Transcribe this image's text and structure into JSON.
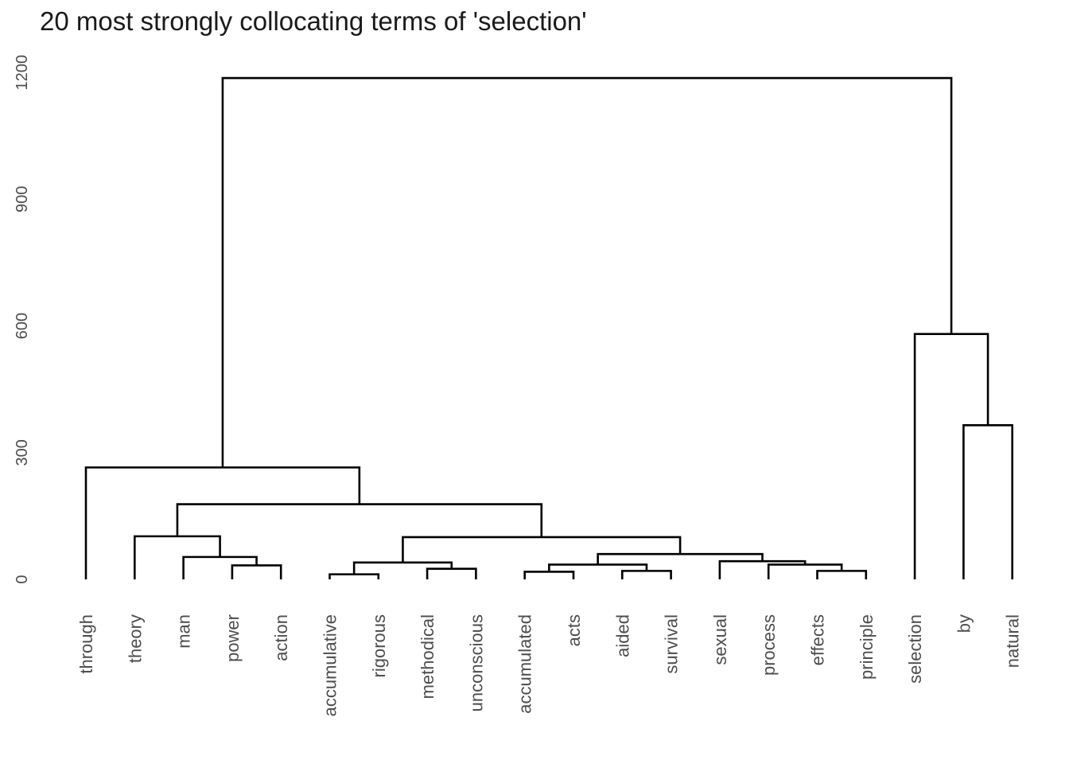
{
  "chart_data": {
    "type": "dendrogram",
    "title": "20 most strongly collocating terms of 'selection'",
    "ylim": [
      0,
      1230
    ],
    "y_ticks": [
      0,
      300,
      600,
      900,
      1200
    ],
    "grid": false,
    "leaves": [
      "through",
      "theory",
      "man",
      "power",
      "action",
      "accumulative",
      "rigorous",
      "methodical",
      "unconscious",
      "accumulated",
      "acts",
      "aided",
      "survival",
      "sexual",
      "process",
      "effects",
      "principle",
      "selection",
      "by",
      "natural"
    ],
    "merges": [
      {
        "a": "L:accumulative",
        "b": "L:rigorous",
        "height": 12
      },
      {
        "a": "L:aided",
        "b": "L:survival",
        "height": 20
      },
      {
        "a": "L:accumulated",
        "b": "L:acts",
        "height": 18
      },
      {
        "a": "L:effects",
        "b": "L:principle",
        "height": 20
      },
      {
        "a": "L:methodical",
        "b": "L:unconscious",
        "height": 25
      },
      {
        "a": "L:power",
        "b": "L:action",
        "height": 33
      },
      {
        "a": "M:2",
        "b": "M:1",
        "height": 35
      },
      {
        "a": "L:process",
        "b": "M:3",
        "height": 35
      },
      {
        "a": "L:sexual",
        "b": "M:7",
        "height": 43
      },
      {
        "a": "M:0",
        "b": "M:4",
        "height": 40
      },
      {
        "a": "L:man",
        "b": "M:5",
        "height": 53
      },
      {
        "a": "M:6",
        "b": "M:8",
        "height": 60
      },
      {
        "a": "M:9",
        "b": "M:11",
        "height": 100
      },
      {
        "a": "L:theory",
        "b": "M:10",
        "height": 102
      },
      {
        "a": "M:13",
        "b": "M:12",
        "height": 178
      },
      {
        "a": "L:through",
        "b": "M:14",
        "height": 265
      },
      {
        "a": "L:by",
        "b": "L:natural",
        "height": 365
      },
      {
        "a": "L:selection",
        "b": "M:16",
        "height": 581
      },
      {
        "a": "M:15",
        "b": "M:17",
        "height": 1187
      }
    ]
  }
}
